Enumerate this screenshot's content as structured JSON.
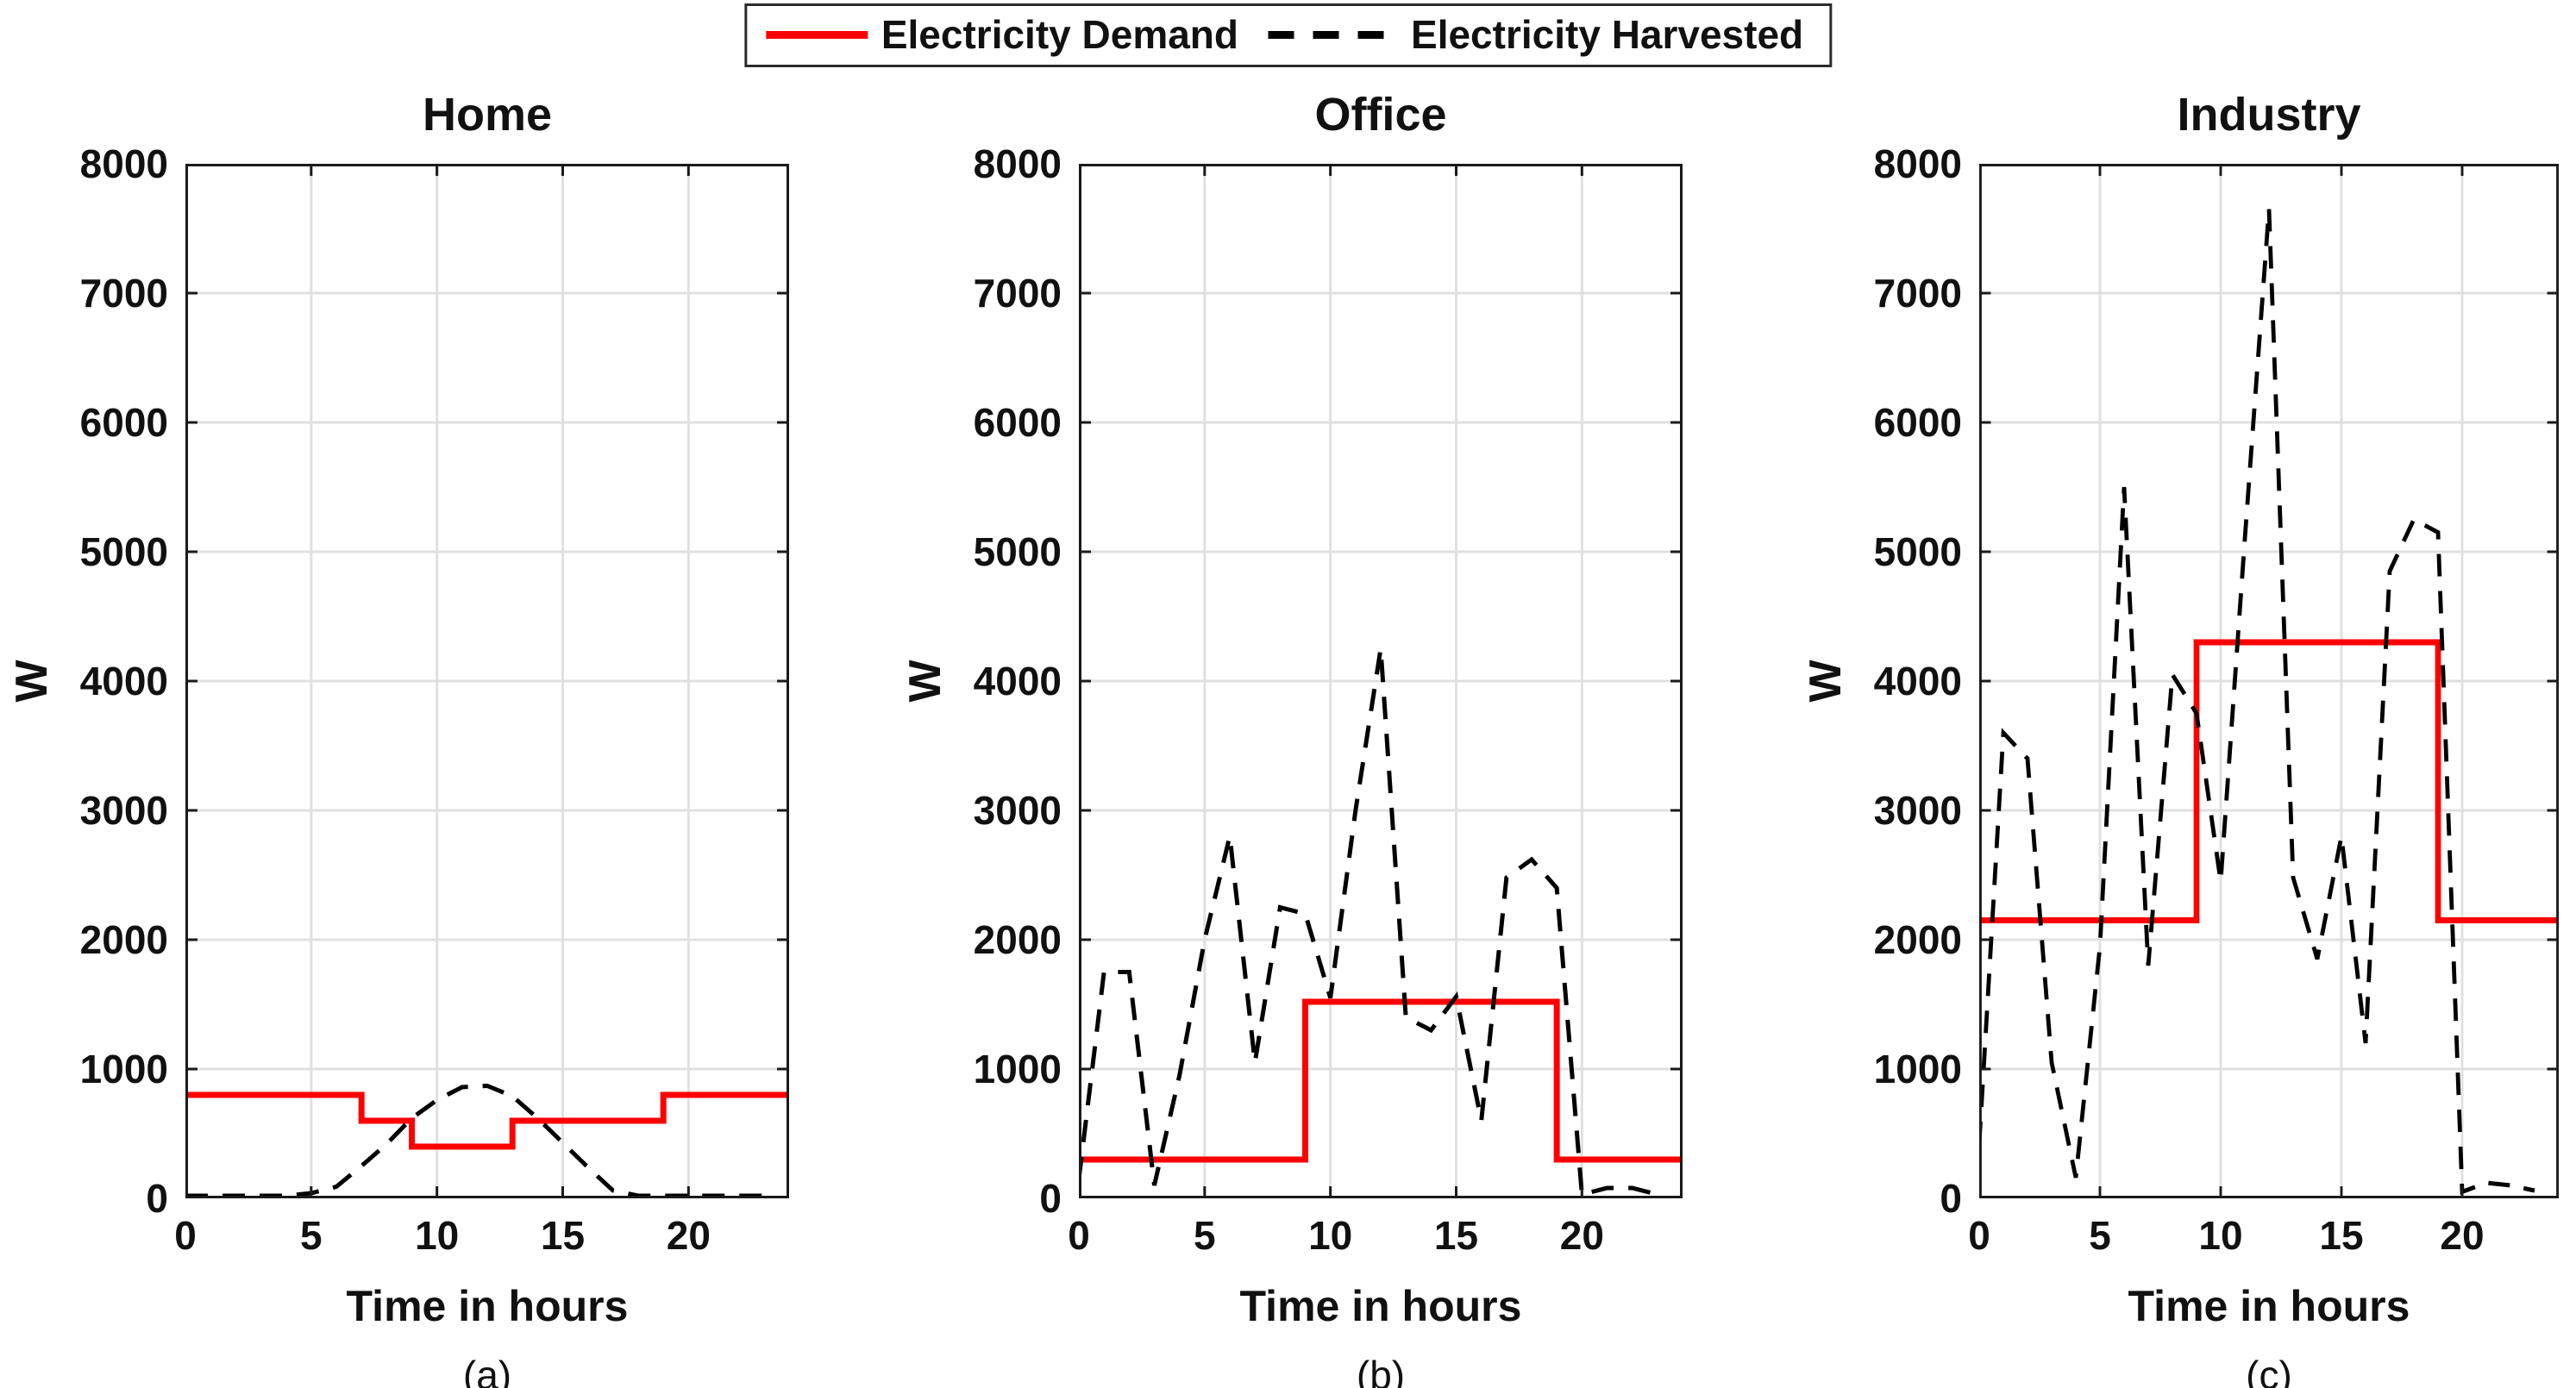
{
  "figure": {
    "background": "#ffffff",
    "accent_red": "#ff0000",
    "line_black": "#000000",
    "grid_color": "#e0e0e0",
    "spine_color": "#1a1a1a"
  },
  "legend": {
    "position": "top-center",
    "items": [
      {
        "label": "Electricity Demand",
        "color": "#ff0000",
        "style": "solid"
      },
      {
        "label": "Electricity Harvested",
        "color": "#000000",
        "style": "dashed"
      }
    ]
  },
  "chart_data": [
    {
      "type": "line",
      "title": "Home",
      "sublabel": "(a)",
      "xlabel": "Time in hours",
      "ylabel": "W",
      "xlim": [
        0,
        24
      ],
      "ylim": [
        0,
        8000
      ],
      "xticks": [
        0,
        5,
        10,
        15,
        20
      ],
      "yticks": [
        0,
        1000,
        2000,
        3000,
        4000,
        5000,
        6000,
        7000,
        8000
      ],
      "grid": true,
      "series": [
        {
          "name": "Electricity Demand",
          "mode": "steps",
          "style": "solid",
          "color": "#ff0000",
          "step_hours": [
            0,
            7,
            9,
            13,
            19,
            24
          ],
          "step_values": [
            800,
            600,
            400,
            600,
            800
          ]
        },
        {
          "name": "Electricity Harvested",
          "mode": "line",
          "style": "dashed",
          "color": "#000000",
          "x": [
            0,
            1,
            2,
            3,
            4,
            5,
            6,
            7,
            8,
            9,
            10,
            11,
            12,
            13,
            14,
            15,
            16,
            17,
            18,
            19,
            20,
            21,
            22,
            23
          ],
          "y": [
            20,
            20,
            20,
            20,
            20,
            40,
            90,
            250,
            420,
            620,
            760,
            860,
            870,
            790,
            620,
            430,
            240,
            60,
            20,
            20,
            20,
            20,
            20,
            20
          ]
        }
      ]
    },
    {
      "type": "line",
      "title": "Office",
      "sublabel": "(b)",
      "xlabel": "Time in hours",
      "ylabel": "W",
      "xlim": [
        0,
        24
      ],
      "ylim": [
        0,
        8000
      ],
      "xticks": [
        0,
        5,
        10,
        15,
        20
      ],
      "yticks": [
        0,
        1000,
        2000,
        3000,
        4000,
        5000,
        6000,
        7000,
        8000
      ],
      "grid": true,
      "series": [
        {
          "name": "Electricity Demand",
          "mode": "steps",
          "style": "solid",
          "color": "#ff0000",
          "step_hours": [
            0,
            9,
            19,
            24
          ],
          "step_values": [
            300,
            1520,
            300
          ]
        },
        {
          "name": "Electricity Harvested",
          "mode": "line",
          "style": "dashed",
          "color": "#000000",
          "x": [
            0,
            1,
            2,
            3,
            4,
            5,
            6,
            7,
            8,
            9,
            10,
            11,
            12,
            13,
            14,
            15,
            16,
            17,
            18,
            19,
            20,
            21,
            22,
            23
          ],
          "y": [
            150,
            1750,
            1750,
            100,
            950,
            2000,
            2800,
            1050,
            2250,
            2200,
            1550,
            3000,
            4250,
            1400,
            1300,
            1560,
            600,
            2480,
            2620,
            2400,
            30,
            80,
            80,
            30
          ]
        }
      ]
    },
    {
      "type": "line",
      "title": "Industry",
      "sublabel": "(c)",
      "xlabel": "Time in hours",
      "ylabel": "W",
      "xlim": [
        0,
        24
      ],
      "ylim": [
        0,
        8000
      ],
      "xticks": [
        0,
        5,
        10,
        15,
        20
      ],
      "yticks": [
        0,
        1000,
        2000,
        3000,
        4000,
        5000,
        6000,
        7000,
        8000
      ],
      "grid": true,
      "series": [
        {
          "name": "Electricity Demand",
          "mode": "steps",
          "style": "solid",
          "color": "#ff0000",
          "step_hours": [
            0,
            9,
            19,
            24
          ],
          "step_values": [
            2150,
            4300,
            2150
          ]
        },
        {
          "name": "Electricity Harvested",
          "mode": "line",
          "style": "dashed",
          "color": "#000000",
          "x": [
            0,
            1,
            2,
            3,
            4,
            5,
            6,
            7,
            8,
            9,
            10,
            11,
            12,
            13,
            14,
            15,
            16,
            17,
            18,
            19,
            20,
            21,
            22,
            23
          ],
          "y": [
            420,
            3600,
            3400,
            1050,
            160,
            1950,
            5500,
            1800,
            4050,
            3750,
            2450,
            5100,
            7650,
            2480,
            1850,
            2800,
            1200,
            4850,
            5250,
            5150,
            50,
            120,
            100,
            60
          ]
        }
      ]
    }
  ]
}
